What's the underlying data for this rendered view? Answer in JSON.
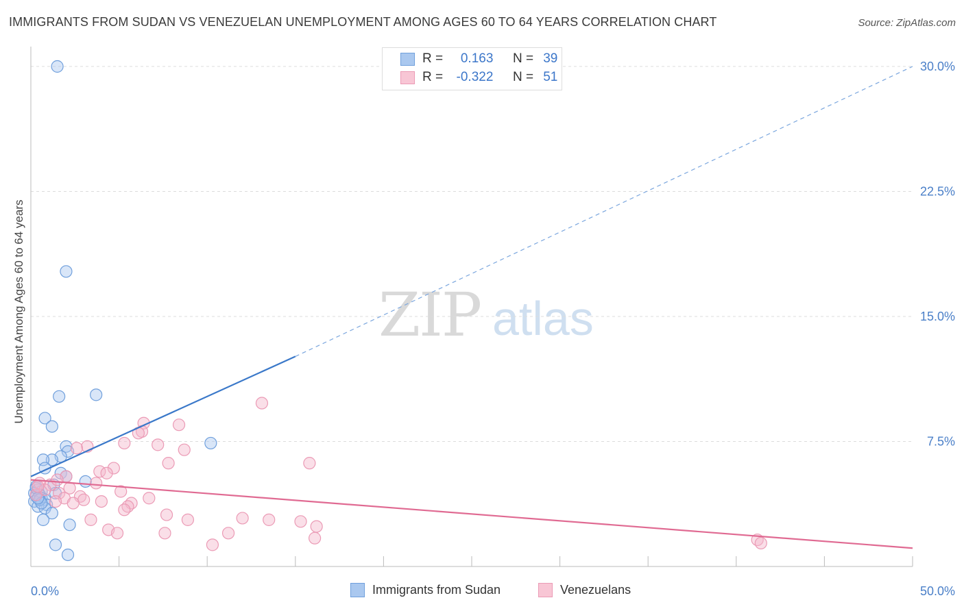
{
  "title": "IMMIGRANTS FROM SUDAN VS VENEZUELAN UNEMPLOYMENT AMONG AGES 60 TO 64 YEARS CORRELATION CHART",
  "source": "Source: ZipAtlas.com",
  "watermark": {
    "zip": "ZIP",
    "atlas": "atlas"
  },
  "colors": {
    "blue": "#3a78c9",
    "blue_fill": "#aac8ef",
    "pink": "#e06a92",
    "pink_fill": "#f5b8cb",
    "axis_label": "#4a7fc8",
    "grid": "#dcdcdc"
  },
  "legend_top": {
    "rows": [
      {
        "r_label": "R =",
        "r_value": "0.163",
        "n_label": "N =",
        "n_value": "39"
      },
      {
        "r_label": "R =",
        "r_value": "-0.322",
        "n_label": "N =",
        "n_value": "51"
      }
    ]
  },
  "legend_bottom": {
    "items": [
      {
        "label": "Immigrants from Sudan"
      },
      {
        "label": "Venezuelans"
      }
    ]
  },
  "chart_data": {
    "type": "scatter",
    "title": "IMMIGRANTS FROM SUDAN VS VENEZUELAN UNEMPLOYMENT AMONG AGES 60 TO 64 YEARS CORRELATION CHART",
    "xlabel": "",
    "ylabel": "Unemployment Among Ages 60 to 64 years",
    "xlim": [
      0,
      50
    ],
    "ylim": [
      0,
      30
    ],
    "x_tick_labels": [
      "0.0%",
      "50.0%"
    ],
    "y_ticks": [
      7.5,
      15.0,
      22.5,
      30.0
    ],
    "y_tick_labels": [
      "7.5%",
      "15.0%",
      "22.5%",
      "30.0%"
    ],
    "grid": true,
    "series": [
      {
        "name": "Immigrants from Sudan",
        "color": "#3a78c9",
        "R": 0.163,
        "N": 39,
        "trend": {
          "x0": 0,
          "y0": 5.4,
          "x1": 15,
          "y1": 12.6,
          "dashed_to_x": 50,
          "dashed_to_y": 30.0
        },
        "points": [
          [
            1.5,
            30.0
          ],
          [
            2.0,
            17.7
          ],
          [
            3.7,
            10.3
          ],
          [
            1.6,
            10.2
          ],
          [
            0.8,
            8.9
          ],
          [
            1.2,
            8.4
          ],
          [
            2.0,
            7.2
          ],
          [
            2.1,
            6.9
          ],
          [
            1.7,
            6.6
          ],
          [
            1.2,
            6.4
          ],
          [
            0.7,
            6.4
          ],
          [
            0.8,
            5.9
          ],
          [
            1.7,
            5.6
          ],
          [
            2.0,
            5.4
          ],
          [
            3.1,
            5.1
          ],
          [
            1.3,
            4.9
          ],
          [
            0.3,
            4.8
          ],
          [
            0.4,
            4.6
          ],
          [
            0.6,
            4.5
          ],
          [
            0.2,
            4.4
          ],
          [
            0.5,
            4.3
          ],
          [
            0.3,
            4.2
          ],
          [
            0.6,
            4.1
          ],
          [
            0.8,
            4.0
          ],
          [
            0.2,
            3.9
          ],
          [
            1.4,
            4.4
          ],
          [
            0.9,
            3.7
          ],
          [
            0.4,
            3.6
          ],
          [
            0.8,
            3.5
          ],
          [
            1.2,
            3.2
          ],
          [
            0.7,
            2.8
          ],
          [
            2.2,
            2.5
          ],
          [
            1.4,
            1.3
          ],
          [
            2.1,
            0.7
          ],
          [
            0.3,
            4.7
          ],
          [
            0.5,
            4.0
          ],
          [
            10.2,
            7.4
          ],
          [
            0.6,
            3.8
          ],
          [
            0.4,
            4.1
          ]
        ]
      },
      {
        "name": "Venezuelans",
        "color": "#e06a92",
        "R": -0.322,
        "N": 51,
        "trend": {
          "x0": 0,
          "y0": 5.2,
          "x1": 50,
          "y1": 1.1
        },
        "points": [
          [
            13.1,
            9.8
          ],
          [
            6.4,
            8.6
          ],
          [
            8.4,
            8.5
          ],
          [
            6.3,
            8.1
          ],
          [
            6.1,
            8.0
          ],
          [
            5.3,
            7.4
          ],
          [
            7.2,
            7.3
          ],
          [
            3.2,
            7.2
          ],
          [
            2.6,
            7.1
          ],
          [
            8.7,
            7.0
          ],
          [
            15.8,
            6.2
          ],
          [
            7.8,
            6.2
          ],
          [
            4.7,
            5.9
          ],
          [
            3.9,
            5.7
          ],
          [
            4.3,
            5.6
          ],
          [
            2.0,
            5.4
          ],
          [
            0.5,
            5.0
          ],
          [
            3.7,
            5.0
          ],
          [
            1.1,
            4.9
          ],
          [
            2.2,
            4.7
          ],
          [
            5.1,
            4.5
          ],
          [
            1.6,
            4.4
          ],
          [
            0.3,
            4.3
          ],
          [
            2.8,
            4.2
          ],
          [
            6.7,
            4.1
          ],
          [
            1.9,
            4.1
          ],
          [
            3.0,
            4.0
          ],
          [
            4.0,
            3.9
          ],
          [
            2.4,
            3.8
          ],
          [
            5.7,
            3.8
          ],
          [
            1.4,
            3.9
          ],
          [
            5.5,
            3.6
          ],
          [
            5.3,
            3.4
          ],
          [
            7.7,
            3.1
          ],
          [
            8.9,
            2.8
          ],
          [
            12.0,
            2.9
          ],
          [
            13.5,
            2.8
          ],
          [
            15.3,
            2.7
          ],
          [
            16.2,
            2.4
          ],
          [
            3.4,
            2.8
          ],
          [
            4.4,
            2.2
          ],
          [
            4.9,
            2.0
          ],
          [
            7.6,
            2.0
          ],
          [
            11.2,
            2.0
          ],
          [
            16.1,
            1.7
          ],
          [
            10.3,
            1.3
          ],
          [
            41.2,
            1.6
          ],
          [
            41.4,
            1.4
          ],
          [
            0.8,
            4.6
          ],
          [
            1.5,
            5.2
          ],
          [
            0.4,
            4.8
          ]
        ]
      }
    ]
  }
}
